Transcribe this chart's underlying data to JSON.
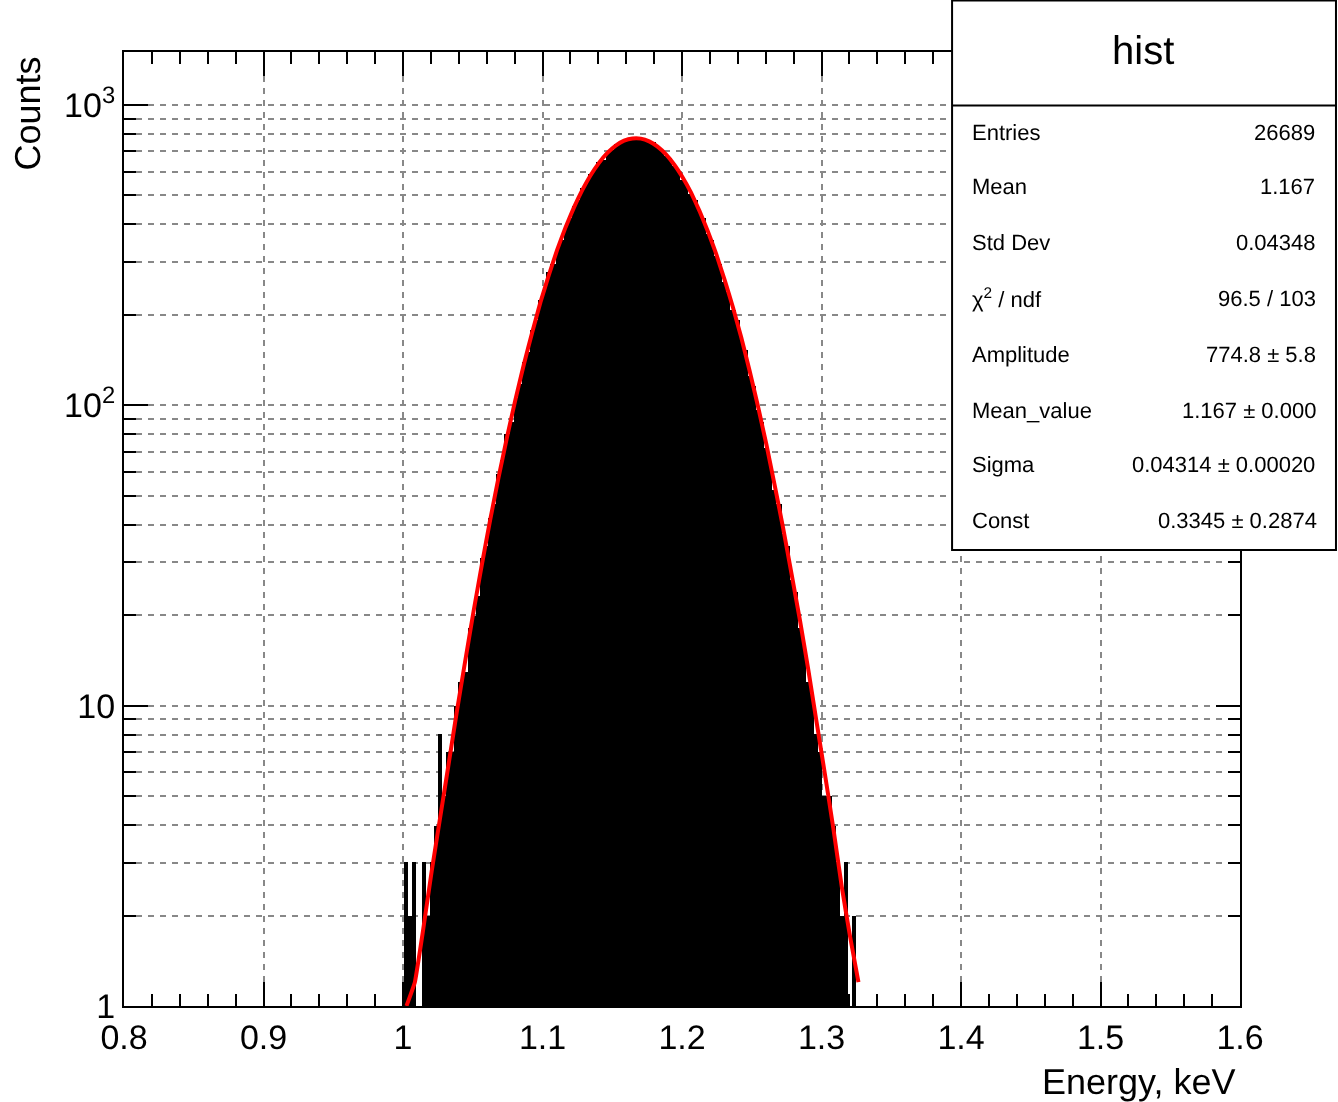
{
  "chart_data": {
    "type": "histogram",
    "xlabel": "Energy, keV",
    "ylabel": "Counts",
    "bins": [
      0.998,
      1.001,
      1.004,
      1.007,
      1.01,
      1.013,
      1.016,
      1.019,
      1.022,
      1.025,
      1.028,
      1.031,
      1.034,
      1.037,
      1.04,
      1.043,
      1.046,
      1.049,
      1.052,
      1.055,
      1.058,
      1.061,
      1.064,
      1.067,
      1.07,
      1.073,
      1.076,
      1.079,
      1.082,
      1.085,
      1.088,
      1.091,
      1.094,
      1.097,
      1.1,
      1.103,
      1.106,
      1.109,
      1.112,
      1.115,
      1.118,
      1.121,
      1.124,
      1.127,
      1.13,
      1.133,
      1.136,
      1.139,
      1.142,
      1.145,
      1.148,
      1.151,
      1.154,
      1.157,
      1.16,
      1.163,
      1.166,
      1.169,
      1.172,
      1.175,
      1.178,
      1.181,
      1.184,
      1.187,
      1.19,
      1.193,
      1.196,
      1.199,
      1.202,
      1.205,
      1.208,
      1.211,
      1.214,
      1.217,
      1.22,
      1.223,
      1.226,
      1.229,
      1.232,
      1.235,
      1.238,
      1.241,
      1.244,
      1.247,
      1.25,
      1.253,
      1.256,
      1.259,
      1.262,
      1.265,
      1.268,
      1.271,
      1.274,
      1.277,
      1.28,
      1.283,
      1.286,
      1.289,
      1.292,
      1.295,
      1.298,
      1.301,
      1.304,
      1.307,
      1.31,
      1.313,
      1.316,
      1.319,
      1.322,
      1.325
    ],
    "values": [
      1,
      3,
      2,
      3,
      1,
      3,
      2,
      3,
      4,
      8,
      5,
      7,
      7,
      10,
      12,
      13,
      18,
      20,
      23,
      31,
      34,
      42,
      47,
      59,
      66,
      80,
      88,
      106,
      117,
      140,
      151,
      178,
      193,
      224,
      241,
      276,
      296,
      335,
      354,
      398,
      418,
      462,
      483,
      528,
      547,
      590,
      608,
      650,
      660,
      700,
      708,
      740,
      742,
      768,
      762,
      780,
      770,
      778,
      760,
      750,
      748,
      720,
      712,
      678,
      662,
      626,
      608,
      566,
      548,
      504,
      482,
      438,
      418,
      374,
      354,
      314,
      294,
      258,
      240,
      208,
      192,
      164,
      152,
      126,
      116,
      96,
      88,
      72,
      65,
      52,
      47,
      37,
      34,
      26,
      24,
      18,
      16,
      12,
      11,
      8,
      7,
      5,
      5,
      4,
      3,
      2,
      3,
      1,
      2
    ],
    "color": "#000000",
    "series": [
      {
        "type": "line",
        "color": "#ff0000",
        "x": [
          1.0025,
          1.0085,
          1.0145,
          1.0205,
          1.0265,
          1.0325,
          1.0385,
          1.0445,
          1.0505,
          1.0565,
          1.0625,
          1.0685,
          1.0745,
          1.0805,
          1.0865,
          1.0925,
          1.0985,
          1.1045,
          1.1105,
          1.1165,
          1.1225,
          1.1285,
          1.1345,
          1.1405,
          1.1465,
          1.1525,
          1.1585,
          1.1645,
          1.1705,
          1.1765,
          1.1825,
          1.1885,
          1.1945,
          1.2005,
          1.2065,
          1.2125,
          1.2185,
          1.2245,
          1.2305,
          1.2365,
          1.2425,
          1.2485,
          1.2545,
          1.2605,
          1.2665,
          1.2725,
          1.2785,
          1.2845,
          1.2905,
          1.2965,
          1.3025,
          1.3085,
          1.3145,
          1.3205,
          1.3265
        ],
        "values": [
          1.0,
          1.2,
          1.8,
          2.8,
          4.2,
          6.3,
          9.5,
          14,
          20.5,
          29.4,
          41.5,
          57.5,
          78,
          104,
          136,
          174,
          220,
          271,
          329,
          391,
          455,
          520,
          583,
          641,
          692,
          732,
          760,
          773,
          772,
          756,
          726,
          684,
          632,
          573,
          510,
          444,
          380,
          319,
          262,
          212,
          168,
          130,
          99,
          74,
          54,
          39,
          27.5,
          19.3,
          13.2,
          8.8,
          5.9,
          3.9,
          2.5,
          1.7,
          1.2
        ]
      }
    ],
    "xlim": [
      0.8,
      1.6
    ],
    "xticks": [
      0.8,
      0.9,
      1,
      1.1,
      1.2,
      1.3,
      1.4,
      1.5,
      1.6
    ],
    "ylim": [
      1,
      1500
    ],
    "yticks": [
      1,
      10,
      {
        "value": 100,
        "label": "10$^{2}$"
      },
      {
        "value": 1000,
        "label": "10$^{3}$"
      }
    ],
    "log": "y",
    "grid": true,
    "annotations": [
      "hist",
      "Entries",
      "26689",
      "Mean",
      "1.167",
      "Std Dev",
      "0.04348",
      "χ$^{2}$ / ndf",
      "96.5 / 103",
      "Amplitude",
      "774.8 ± 5.8",
      "Mean_value",
      "1.167 ± 0.000",
      "Sigma",
      "0.04314 ± 0.00020",
      "Const",
      "0.3345 ± 0.2874"
    ]
  }
}
